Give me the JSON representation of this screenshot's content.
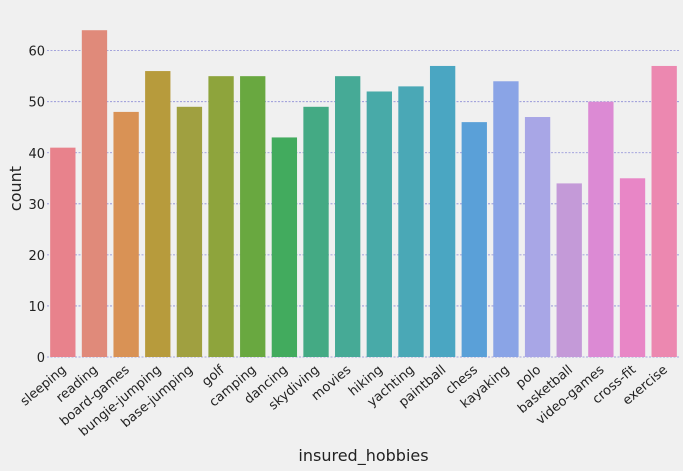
{
  "chart_data": {
    "type": "bar",
    "title": "",
    "xlabel": "insured_hobbies",
    "ylabel": "count",
    "ylim": [
      0,
      66
    ],
    "yticks": [
      0,
      10,
      20,
      30,
      40,
      50,
      60
    ],
    "grid": true,
    "categories": [
      "sleeping",
      "reading",
      "board-games",
      "bungie-jumping",
      "base-jumping",
      "golf",
      "camping",
      "dancing",
      "skydiving",
      "movies",
      "hiking",
      "yachting",
      "paintball",
      "chess",
      "kayaking",
      "polo",
      "basketball",
      "video-games",
      "cross-fit",
      "exercise"
    ],
    "values": [
      41,
      64,
      48,
      56,
      49,
      55,
      55,
      43,
      49,
      55,
      52,
      53,
      57,
      46,
      54,
      47,
      34,
      50,
      35,
      57
    ],
    "colors": [
      "#e8828c",
      "#e08a7a",
      "#d99255",
      "#b79b3c",
      "#a0a040",
      "#8ea43c",
      "#69a840",
      "#42ab5e",
      "#44aa84",
      "#46aa96",
      "#48aaa8",
      "#4aa8b6",
      "#4aa6c2",
      "#5aa0d8",
      "#8aa4e6",
      "#a8a6e6",
      "#c49ad8",
      "#dc8ad4",
      "#e886c6",
      "#ec88b0"
    ]
  }
}
